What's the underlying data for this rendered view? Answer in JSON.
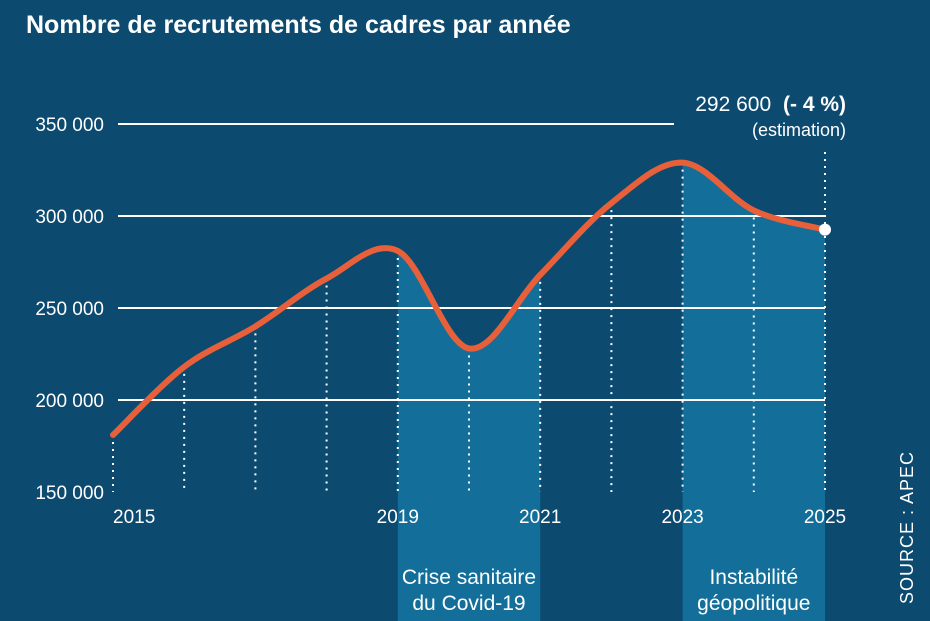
{
  "chart_data": {
    "type": "line",
    "title": "Nombre de recrutements de cadres par année",
    "x": [
      2015,
      2016,
      2017,
      2018,
      2019,
      2020,
      2021,
      2022,
      2023,
      2024,
      2025
    ],
    "xtick_labels": [
      "2015",
      "2019",
      "2021",
      "2023",
      "2025"
    ],
    "xtick_values": [
      2015,
      2019,
      2021,
      2023,
      2025
    ],
    "yticks": [
      150000,
      200000,
      250000,
      300000,
      350000
    ],
    "ytick_labels": [
      "150 000",
      "200 000",
      "250 000",
      "300 000",
      "350 000"
    ],
    "ylim": [
      150000,
      350000
    ],
    "xlim": [
      2015,
      2025
    ],
    "series": [
      {
        "values": [
          181000,
          218000,
          240000,
          266000,
          281000,
          228000,
          268000,
          307000,
          329000,
          303000,
          292600
        ],
        "color": "#e8603a"
      }
    ],
    "shaded_periods": [
      {
        "from": 2019,
        "to": 2021,
        "label_lines": [
          "Crise sanitaire",
          "du Covid-19"
        ]
      },
      {
        "from": 2023,
        "to": 2025,
        "label_lines": [
          "Instabilité",
          "géopolitique"
        ]
      }
    ],
    "annotation": {
      "value_text": "292 600",
      "change_text": "(- 4 %)",
      "note_text": "(estimation)"
    },
    "grid": true,
    "source_text": "SOURCE : APEC"
  },
  "colors": {
    "background": "#0c4a70",
    "shade": "#136f99",
    "line": "#e8603a",
    "text": "#ffffff"
  }
}
